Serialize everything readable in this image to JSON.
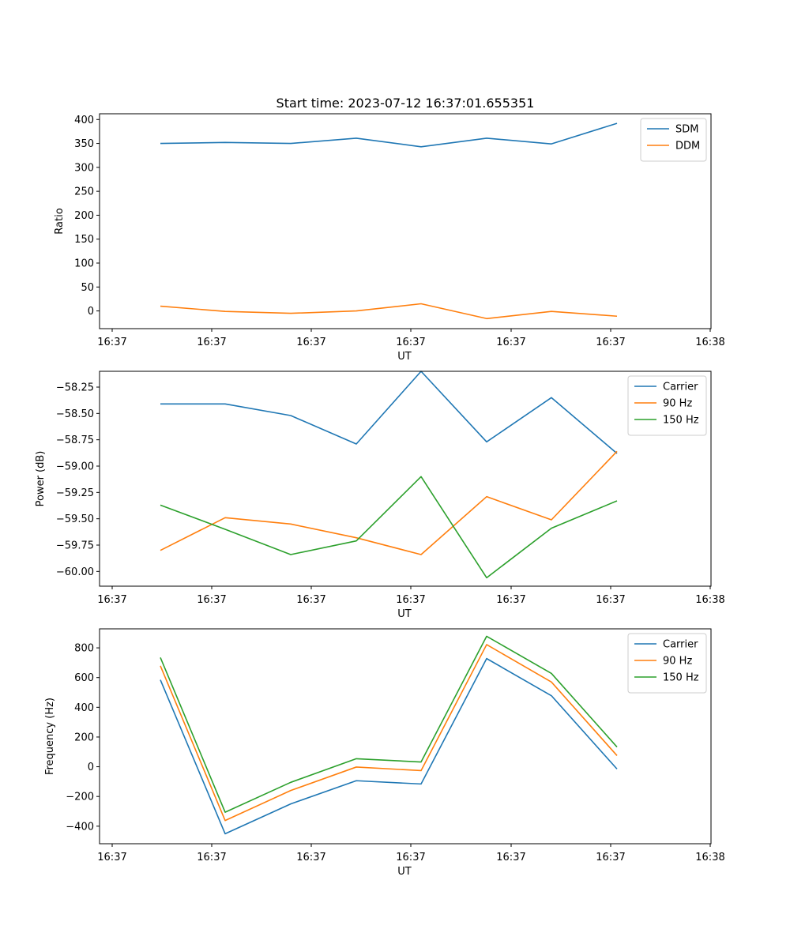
{
  "chart_data": [
    {
      "type": "line",
      "title": "Start time: 2023-07-12 16:37:01.655351",
      "xlabel": "UT",
      "ylabel": "Ratio",
      "x_tick_labels": [
        "16:37",
        "16:37",
        "16:37",
        "16:37",
        "16:37",
        "16:37",
        "16:37",
        "16:38"
      ],
      "ylim": [
        -37,
        412
      ],
      "yticks": [
        0,
        50,
        100,
        150,
        200,
        250,
        300,
        350,
        400
      ],
      "legend_position": "upper-right",
      "series": [
        {
          "name": "SDM",
          "color": "#1f77b4",
          "values": [
            350,
            352,
            350,
            361,
            343,
            361,
            349,
            392
          ]
        },
        {
          "name": "DDM",
          "color": "#ff7f0e",
          "values": [
            10,
            -1,
            -5,
            0,
            15,
            -16,
            -1,
            -11
          ]
        }
      ]
    },
    {
      "type": "line",
      "title": "",
      "xlabel": "UT",
      "ylabel": "Power (dB)",
      "x_tick_labels": [
        "16:37",
        "16:37",
        "16:37",
        "16:37",
        "16:37",
        "16:37",
        "16:37",
        "16:38"
      ],
      "ylim": [
        -60.14,
        -58.1
      ],
      "yticks": [
        -60.0,
        -59.75,
        -59.5,
        -59.25,
        -59.0,
        -58.75,
        -58.5,
        -58.25
      ],
      "legend_position": "upper-right",
      "series": [
        {
          "name": "Carrier",
          "color": "#1f77b4",
          "values": [
            -58.41,
            -58.41,
            -58.52,
            -58.79,
            -58.1,
            -58.77,
            -58.35,
            -58.88
          ]
        },
        {
          "name": "90 Hz",
          "color": "#ff7f0e",
          "values": [
            -59.8,
            -59.49,
            -59.55,
            -59.68,
            -59.84,
            -59.29,
            -59.51,
            -58.86
          ]
        },
        {
          "name": "150 Hz",
          "color": "#2ca02c",
          "values": [
            -59.37,
            -59.6,
            -59.84,
            -59.71,
            -59.1,
            -60.06,
            -59.59,
            -59.33
          ]
        }
      ]
    },
    {
      "type": "line",
      "title": "",
      "xlabel": "UT",
      "ylabel": "Frequency (Hz)",
      "x_tick_labels": [
        "16:37",
        "16:37",
        "16:37",
        "16:37",
        "16:37",
        "16:37",
        "16:37",
        "16:38"
      ],
      "ylim": [
        -518,
        928
      ],
      "yticks": [
        -400,
        -200,
        0,
        200,
        400,
        600,
        800
      ],
      "legend_position": "upper-right",
      "series": [
        {
          "name": "Carrier",
          "color": "#1f77b4",
          "values": [
            585,
            -451,
            -250,
            -94,
            -116,
            728,
            478,
            -15
          ]
        },
        {
          "name": "90 Hz",
          "color": "#ff7f0e",
          "values": [
            679,
            -362,
            -160,
            -2,
            -26,
            822,
            570,
            75
          ]
        },
        {
          "name": "150 Hz",
          "color": "#2ca02c",
          "values": [
            735,
            -306,
            -105,
            54,
            32,
            878,
            628,
            133
          ]
        }
      ]
    }
  ]
}
